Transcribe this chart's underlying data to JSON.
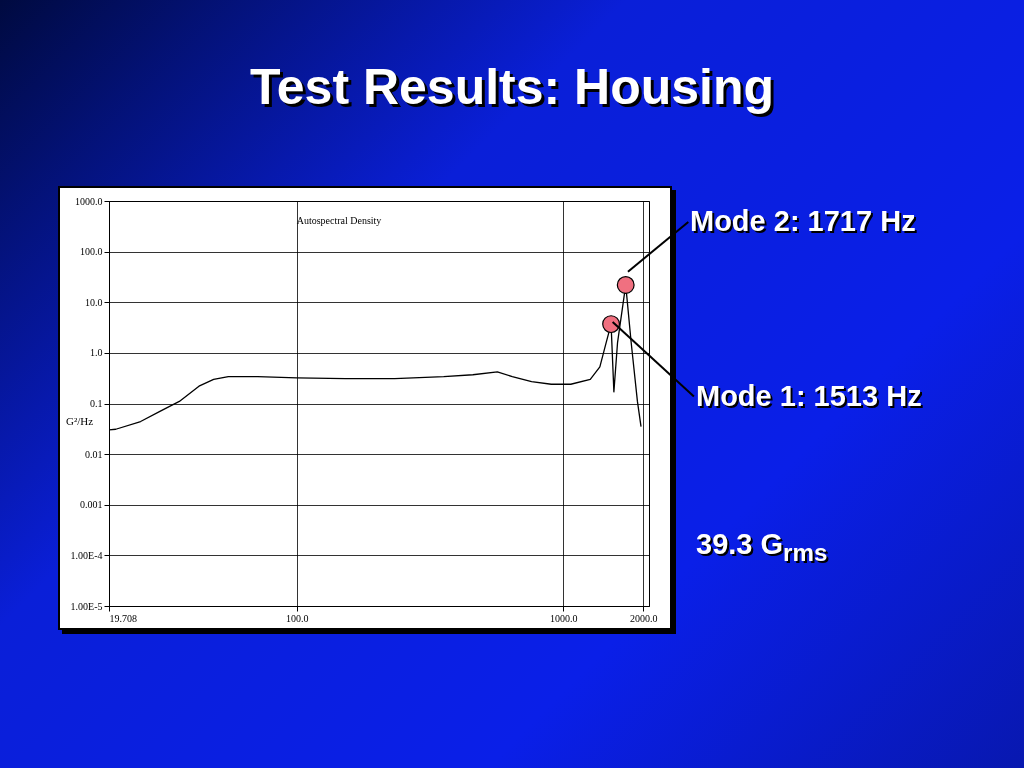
{
  "chart_data": {
    "type": "line",
    "title": "Test Results: Housing",
    "subtitle": "Autospectral Density",
    "ylabel": "G²/Hz",
    "x": [
      19.708,
      20.9,
      25.9,
      30.6,
      36.2,
      42.9,
      48.7,
      55.3,
      71.2,
      100,
      152,
      233,
      356,
      458,
      566,
      644,
      761,
      902,
      1068,
      1264,
      1373,
      1450,
      1513,
      1550,
      1600,
      1717,
      1800,
      1900,
      1960
    ],
    "series": [
      {
        "color": "#000000",
        "values": [
          0.03,
          0.031,
          0.044,
          0.07,
          0.11,
          0.22,
          0.3,
          0.34,
          0.34,
          0.32,
          0.31,
          0.31,
          0.34,
          0.37,
          0.42,
          0.34,
          0.27,
          0.24,
          0.24,
          0.3,
          0.53,
          1.6,
          3.7,
          0.17,
          1.6,
          22,
          1.6,
          0.11,
          0.035
        ]
      }
    ],
    "xlim": [
      19.708,
      2100
    ],
    "ylim": [
      1e-05,
      1000
    ],
    "log": "xy",
    "xticks": [
      19.708,
      {
        "value": 100,
        "label": "100.0"
      },
      {
        "value": 1000,
        "label": "1000.0"
      },
      {
        "value": 2000,
        "label": "2000.0"
      }
    ],
    "yticks": [
      {
        "value": 1e-05,
        "label": "1.00E-5"
      },
      {
        "value": 0.0001,
        "label": "1.00E-4"
      },
      0.001,
      0.01,
      0.1,
      {
        "value": 1,
        "label": "1.0"
      },
      {
        "value": 10,
        "label": "10.0"
      },
      {
        "value": 100,
        "label": "100.0"
      },
      {
        "value": 1000,
        "label": "1000.0"
      }
    ],
    "grid": true,
    "legend": false,
    "annotations": [
      {
        "text": "Mode 2: 1717 Hz",
        "x": 1717,
        "y": 22
      },
      {
        "text": "Mode 1: 1513 Hz",
        "x": 1513,
        "y": 3.7
      },
      "39.3 G$_{rms}$"
    ]
  }
}
